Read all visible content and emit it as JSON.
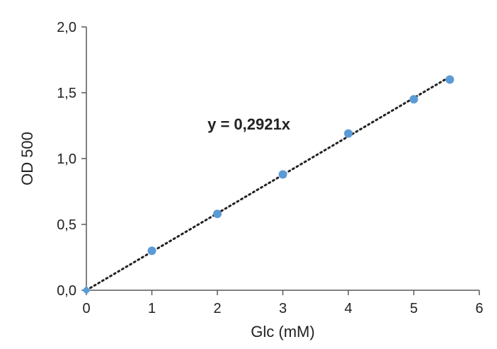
{
  "chart_data": {
    "type": "scatter",
    "title": "",
    "xlabel": "Glc (mM)",
    "ylabel": "OD 500",
    "xlim": [
      0,
      6
    ],
    "ylim": [
      0,
      2.0
    ],
    "x_ticks": [
      0,
      1,
      2,
      3,
      4,
      5,
      6
    ],
    "y_ticks": [
      0,
      0.5,
      1.0,
      1.5,
      2.0
    ],
    "x_tick_labels": [
      "0",
      "1",
      "2",
      "3",
      "4",
      "5",
      "6"
    ],
    "y_tick_labels": [
      "0,0",
      "0,5",
      "1,0",
      "1,5",
      "2,0"
    ],
    "grid": false,
    "legend": "none",
    "series": [
      {
        "x": [
          0,
          1,
          2,
          3,
          4,
          5,
          5.55
        ],
        "y": [
          0,
          0.3,
          0.58,
          0.88,
          1.19,
          1.45,
          1.6
        ],
        "color": "#5b9bd5"
      }
    ],
    "trendline": {
      "type": "linear-through-origin",
      "slope": 0.2921,
      "x_range": [
        0,
        5.55
      ],
      "style": "dotted",
      "color": "#222222"
    },
    "annotation": "y = 0,2921x"
  }
}
